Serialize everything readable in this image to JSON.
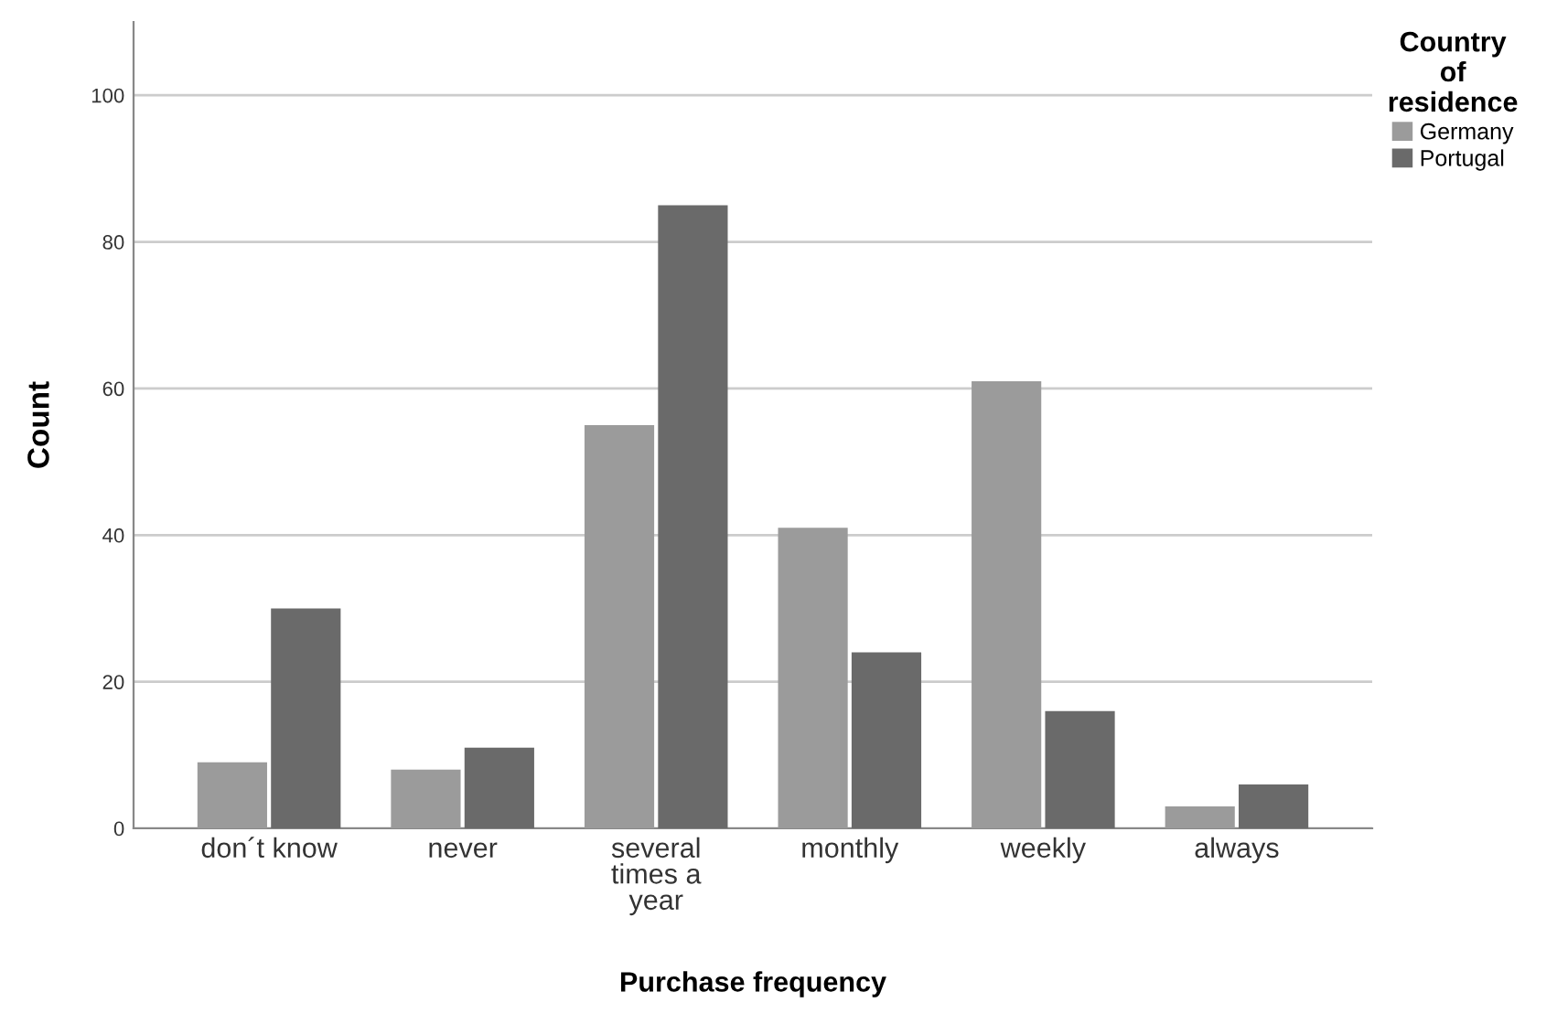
{
  "chart_data": {
    "type": "bar",
    "xlabel": "Purchase frequency",
    "ylabel": "Count",
    "legend_title": "Country\nof\nresidence",
    "categories": [
      "don´t know",
      "never",
      "several\ntimes a\nyear",
      "monthly",
      "weekly",
      "always"
    ],
    "series": [
      {
        "name": "Germany",
        "color": "#9b9b9b",
        "values": [
          9,
          8,
          55,
          41,
          61,
          3
        ]
      },
      {
        "name": "Portugal",
        "color": "#6a6a6a",
        "values": [
          30,
          11,
          85,
          24,
          16,
          6
        ]
      }
    ],
    "ylim": [
      0,
      110
    ],
    "yticks": [
      0,
      20,
      40,
      60,
      80,
      100
    ],
    "grid": "y",
    "legend": "top right"
  }
}
